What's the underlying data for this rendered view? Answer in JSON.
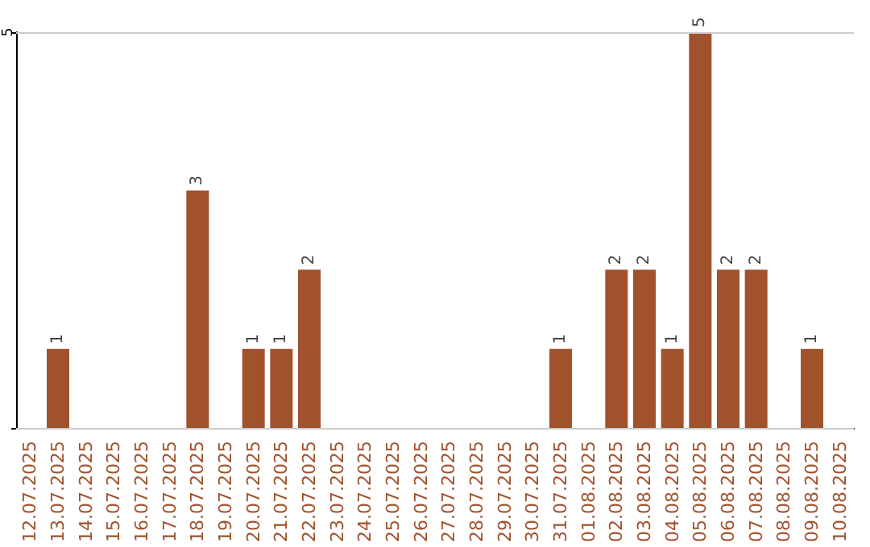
{
  "chart_data": {
    "type": "bar",
    "categories": [
      "12.07.2025",
      "13.07.2025",
      "14.07.2025",
      "15.07.2025",
      "16.07.2025",
      "17.07.2025",
      "18.07.2025",
      "19.07.2025",
      "20.07.2025",
      "21.07.2025",
      "22.07.2025",
      "23.07.2025",
      "24.07.2025",
      "25.07.2025",
      "26.07.2025",
      "27.07.2025",
      "28.07.2025",
      "29.07.2025",
      "30.07.2025",
      "31.07.2025",
      "01.08.2025",
      "02.08.2025",
      "03.08.2025",
      "04.08.2025",
      "05.08.2025",
      "06.08.2025",
      "07.08.2025",
      "08.08.2025",
      "09.08.2025",
      "10.08.2025"
    ],
    "values": [
      0,
      1,
      0,
      0,
      0,
      0,
      3,
      0,
      1,
      1,
      2,
      0,
      0,
      0,
      0,
      0,
      0,
      0,
      0,
      1,
      0,
      2,
      2,
      1,
      5,
      2,
      2,
      0,
      1,
      0
    ],
    "color": "#a0522d",
    "ylim": [
      0,
      5
    ],
    "yticks": [
      {
        "value": 0,
        "label": null
      },
      5
    ],
    "grid": "y",
    "value_labels": [
      null,
      "1",
      null,
      null,
      null,
      null,
      "3",
      null,
      "1",
      "1",
      "2",
      null,
      null,
      null,
      null,
      null,
      null,
      null,
      null,
      "1",
      null,
      "2",
      "2",
      "1",
      "5",
      "2",
      "2",
      null,
      "1",
      null
    ]
  }
}
